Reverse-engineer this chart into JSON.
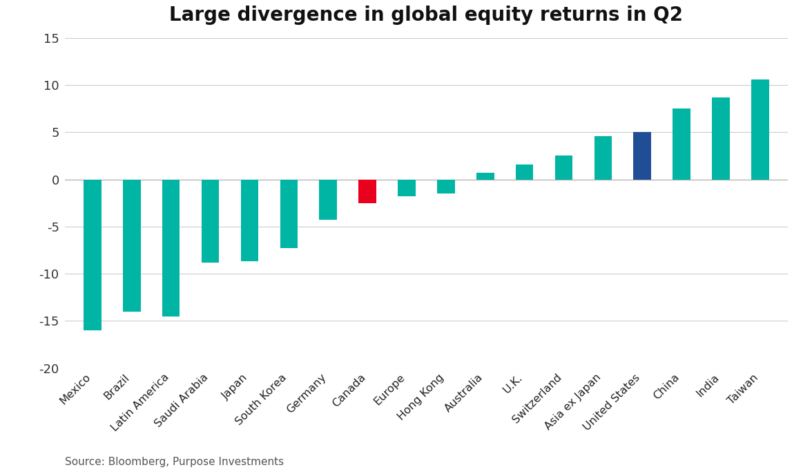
{
  "title": "Large divergence in global equity returns in Q2",
  "categories": [
    "Mexico",
    "Brazil",
    "Latin America",
    "Saudi Arabia",
    "Japan",
    "South Korea",
    "Germany",
    "Canada",
    "Europe",
    "Hong Kong",
    "Australia",
    "U.K.",
    "Switzerland",
    "Asia ex Japan",
    "United States",
    "China",
    "India",
    "Taiwan"
  ],
  "values": [
    -16.0,
    -14.0,
    -14.5,
    -8.8,
    -8.7,
    -7.3,
    -4.3,
    -2.5,
    -1.8,
    -1.5,
    0.7,
    1.6,
    2.5,
    4.6,
    5.0,
    7.5,
    8.7,
    10.6
  ],
  "colors": [
    "#00B5A3",
    "#00B5A3",
    "#00B5A3",
    "#00B5A3",
    "#00B5A3",
    "#00B5A3",
    "#00B5A3",
    "#E8001C",
    "#00B5A3",
    "#00B5A3",
    "#00B5A3",
    "#00B5A3",
    "#00B5A3",
    "#00B5A3",
    "#1F4E96",
    "#00B5A3",
    "#00B5A3",
    "#00B5A3"
  ],
  "ylim": [
    -20,
    15
  ],
  "yticks": [
    -20,
    -15,
    -10,
    -5,
    0,
    5,
    10,
    15
  ],
  "source_text": "Source: Bloomberg, Purpose Investments",
  "background_color": "#FFFFFF",
  "grid_color": "#CCCCCC",
  "title_fontsize": 20,
  "label_fontsize": 11.5,
  "tick_fontsize": 13,
  "source_fontsize": 11,
  "bar_width": 0.45
}
